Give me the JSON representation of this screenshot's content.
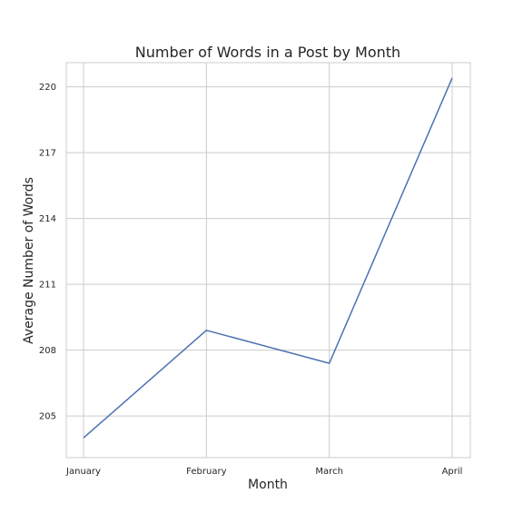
{
  "chart_data": {
    "type": "line",
    "title": "Number of Words in a Post by Month",
    "xlabel": "Month",
    "ylabel": "Average Number of Words",
    "categories": [
      "January",
      "February",
      "March",
      "April"
    ],
    "series": [
      {
        "values": [
          204.0,
          208.9,
          207.4,
          220.4
        ],
        "color": "#4c72b0"
      }
    ],
    "ylim": [
      203.1,
      221.1
    ],
    "yticks": [
      205,
      208,
      211,
      214,
      217,
      220
    ],
    "grid": true,
    "legend": false
  }
}
